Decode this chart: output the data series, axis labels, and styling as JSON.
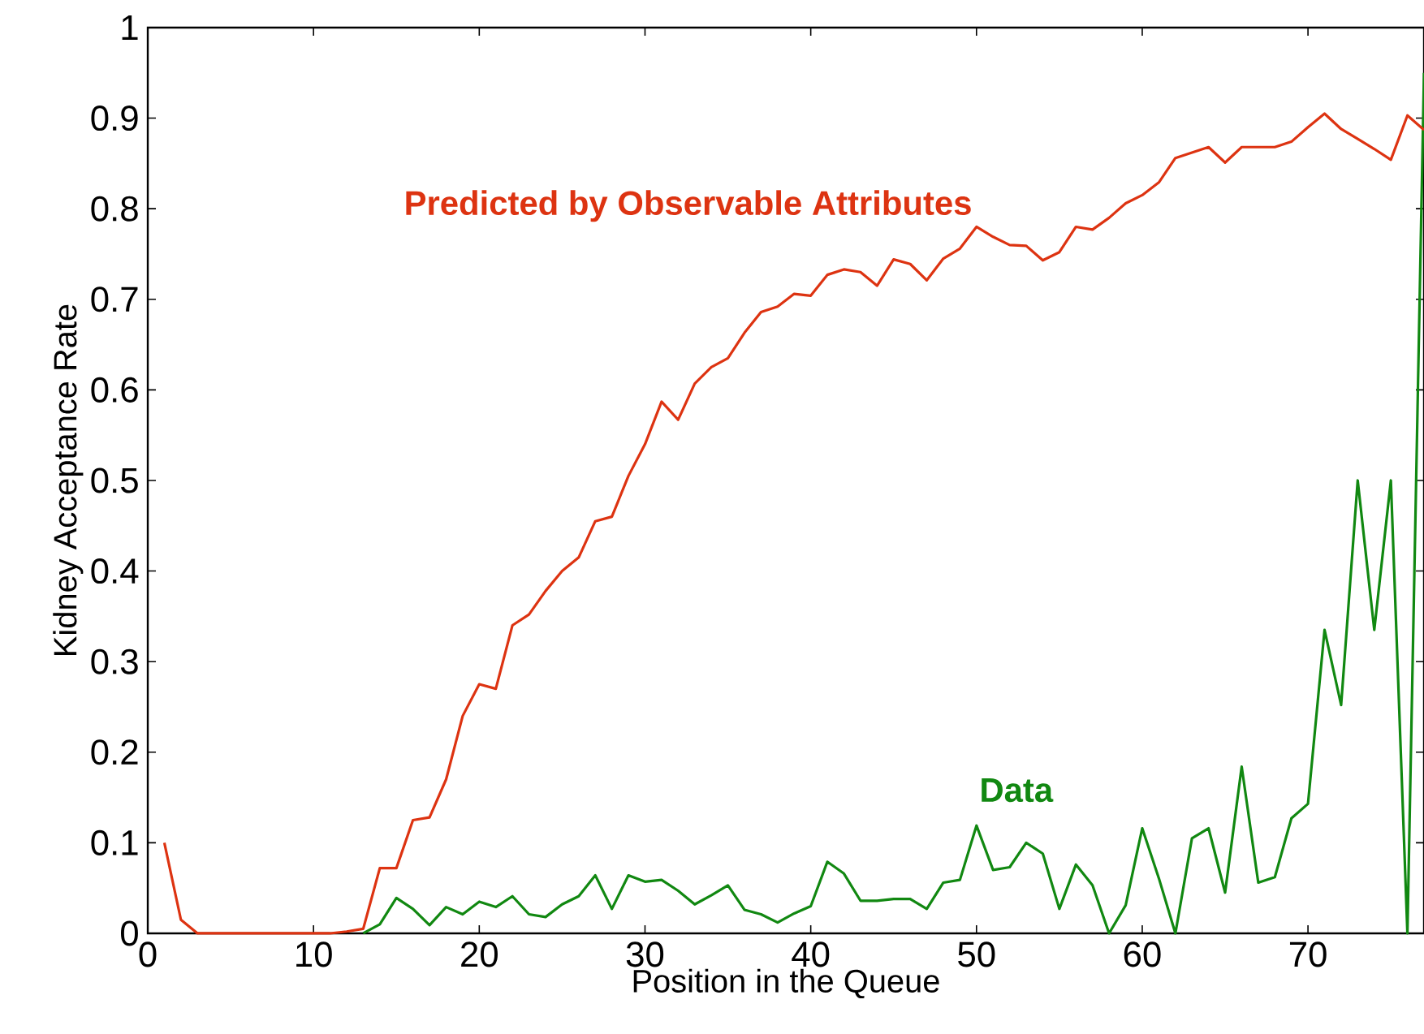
{
  "chart_data": {
    "type": "line",
    "xlabel": "Position in the Queue",
    "ylabel": "Kidney Acceptance Rate",
    "x": [
      1,
      2,
      3,
      4,
      5,
      6,
      7,
      8,
      9,
      10,
      11,
      12,
      13,
      14,
      15,
      16,
      17,
      18,
      19,
      20,
      21,
      22,
      23,
      24,
      25,
      26,
      27,
      28,
      29,
      30,
      31,
      32,
      33,
      34,
      35,
      36,
      37,
      38,
      39,
      40,
      41,
      42,
      43,
      44,
      45,
      46,
      47,
      48,
      49,
      50,
      51,
      52,
      53,
      54,
      55,
      56,
      57,
      58,
      59,
      60,
      61,
      62,
      63,
      64,
      65,
      66,
      67,
      68,
      69,
      70,
      71,
      72,
      73,
      74,
      75,
      76,
      77
    ],
    "series": [
      {
        "name": "Predicted by Observable Attributes",
        "color": "#dd3311",
        "values": [
          0.1,
          0.015,
          0,
          0,
          0,
          0,
          0,
          0,
          0,
          0,
          0,
          0.002,
          0.005,
          0.072,
          0.072,
          0.125,
          0.128,
          0.17,
          0.24,
          0.275,
          0.27,
          0.34,
          0.352,
          0.378,
          0.4,
          0.415,
          0.455,
          0.46,
          0.505,
          0.54,
          0.587,
          0.567,
          0.607,
          0.625,
          0.635,
          0.663,
          0.686,
          0.692,
          0.706,
          0.704,
          0.727,
          0.733,
          0.73,
          0.715,
          0.744,
          0.739,
          0.721,
          0.745,
          0.756,
          0.78,
          0.769,
          0.76,
          0.759,
          0.743,
          0.752,
          0.78,
          0.777,
          0.79,
          0.806,
          0.815,
          0.829,
          0.856,
          0.862,
          0.868,
          0.851,
          0.868,
          0.868,
          0.868,
          0.874,
          0.89,
          0.905,
          0.888,
          0.877,
          0.866,
          0.854,
          0.903,
          0.887
        ]
      },
      {
        "name": "Data",
        "color": "#118811",
        "values": [
          null,
          null,
          null,
          null,
          null,
          null,
          null,
          null,
          null,
          null,
          null,
          null,
          0,
          0.01,
          0.039,
          0.027,
          0.009,
          0.029,
          0.021,
          0.035,
          0.029,
          0.041,
          0.021,
          0.018,
          0.032,
          0.041,
          0.064,
          0.027,
          0.064,
          0.057,
          0.059,
          0.047,
          0.032,
          0.042,
          0.053,
          0.026,
          0.021,
          0.012,
          0.022,
          0.03,
          0.079,
          0.066,
          0.036,
          0.036,
          0.038,
          0.038,
          0.027,
          0.056,
          0.059,
          0.119,
          0.07,
          0.073,
          0.1,
          0.088,
          0.027,
          0.076,
          0.053,
          0,
          0.031,
          0.116,
          0.061,
          0,
          0.105,
          0.116,
          0.045,
          0.184,
          0.056,
          0.062,
          0.127,
          0.143,
          0.335,
          0.252,
          0.5,
          0.335,
          0.5,
          0,
          0.95
        ]
      }
    ],
    "xlim": [
      0,
      77
    ],
    "ylim": [
      0,
      1
    ],
    "xticks": [
      0,
      10,
      20,
      30,
      40,
      50,
      60,
      70
    ],
    "yticks": [
      0,
      0.1,
      0.2,
      0.3,
      0.4,
      0.5,
      0.6,
      0.7,
      0.8,
      0.9,
      1
    ],
    "grid": false,
    "marker": "none",
    "line_style": "solid"
  }
}
